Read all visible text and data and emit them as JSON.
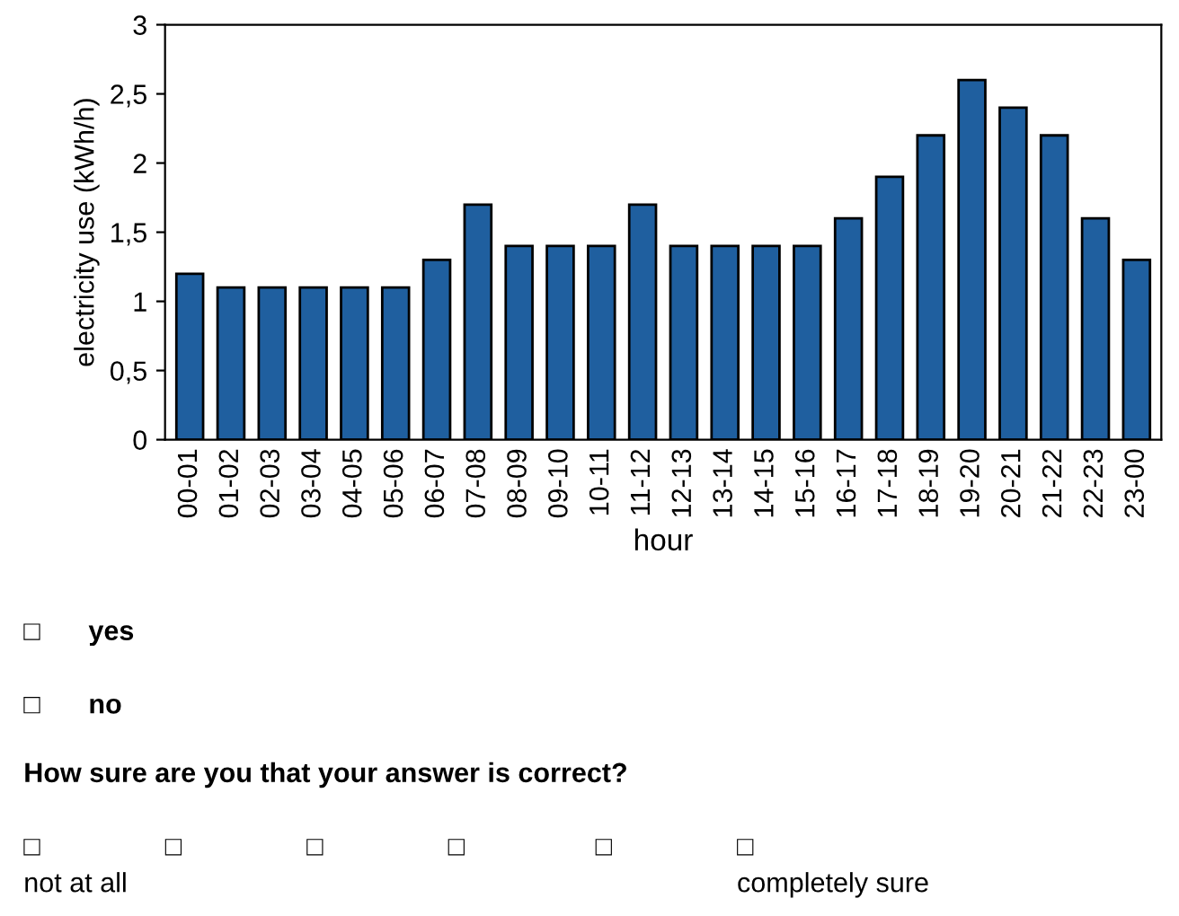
{
  "chart_data": {
    "type": "bar",
    "xlabel": "hour",
    "ylabel": "electricity use (kWh/h)",
    "categories": [
      "00-01",
      "01-02",
      "02-03",
      "03-04",
      "04-05",
      "05-06",
      "06-07",
      "07-08",
      "08-09",
      "09-10",
      "10-11",
      "11-12",
      "12-13",
      "13-14",
      "14-15",
      "15-16",
      "16-17",
      "17-18",
      "18-19",
      "19-20",
      "20-21",
      "21-22",
      "22-23",
      "23-00"
    ],
    "values": [
      1.2,
      1.1,
      1.1,
      1.1,
      1.1,
      1.1,
      1.3,
      1.7,
      1.4,
      1.4,
      1.4,
      1.7,
      1.4,
      1.4,
      1.4,
      1.4,
      1.6,
      1.9,
      2.2,
      2.6,
      2.4,
      2.2,
      1.6,
      1.3
    ],
    "color": "#1f5f9f",
    "ylim": [
      0,
      3
    ],
    "yticks": [
      0,
      {
        "value": 0.5,
        "label": "0,5"
      },
      1,
      {
        "value": 1.5,
        "label": "1,5"
      },
      2,
      {
        "value": 2.5,
        "label": "2,5"
      },
      3
    ],
    "grid": false,
    "annotations": [
      "□",
      "yes",
      "□",
      "no",
      "How sure are you that your answer is correct?",
      "□",
      "□",
      "□",
      "□",
      "□",
      "□",
      "not at all",
      "completely sure"
    ]
  }
}
